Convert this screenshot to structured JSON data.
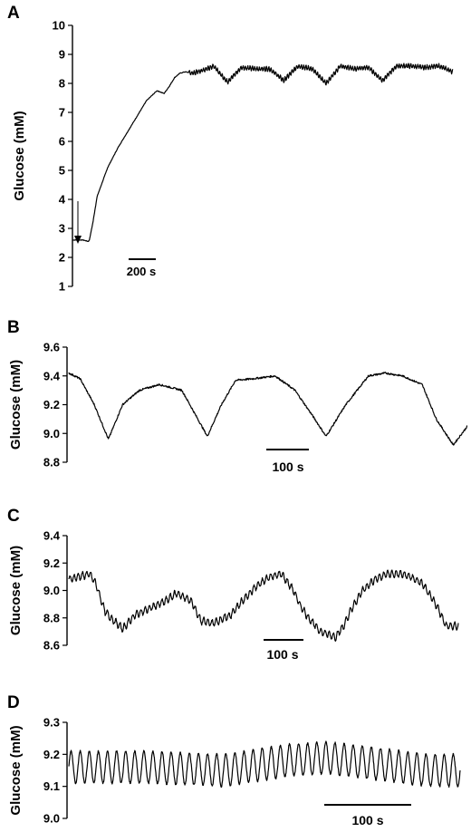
{
  "chart_data": [
    {
      "type": "line",
      "panel_label": "A",
      "ylabel": "Glucose (mM)",
      "ylim": [
        1,
        10
      ],
      "yticks": [
        "1",
        "2",
        "3",
        "4",
        "5",
        "6",
        "7",
        "8",
        "9",
        "10"
      ],
      "scale_bar_label": "200 s",
      "annotation": "arrow",
      "series": [
        {
          "x": [
            0,
            30,
            45,
            48,
            58,
            70,
            100,
            130,
            170,
            210,
            240,
            260,
            275,
            290,
            305,
            320,
            340,
            370,
            400,
            440,
            480,
            520,
            560,
            600,
            640,
            680,
            720,
            760,
            800,
            840,
            880,
            920,
            960,
            1000,
            1040,
            1080
          ],
          "y": [
            2.6,
            2.6,
            2.55,
            2.6,
            3.2,
            4.1,
            5.1,
            5.8,
            6.6,
            7.4,
            7.75,
            7.65,
            7.9,
            8.2,
            8.35,
            8.4,
            8.35,
            8.45,
            8.6,
            8.05,
            8.55,
            8.5,
            8.5,
            8.1,
            8.6,
            8.5,
            8.0,
            8.6,
            8.5,
            8.55,
            8.1,
            8.6,
            8.6,
            8.55,
            8.6,
            8.4
          ]
        }
      ]
    },
    {
      "type": "line",
      "panel_label": "B",
      "ylabel": "Glucose (mM)",
      "ylim": [
        8.8,
        9.6
      ],
      "yticks": [
        "8.8",
        "9.0",
        "9.2",
        "9.4",
        "9.6"
      ],
      "scale_bar_label": "100 s",
      "series": [
        {
          "x": [
            0,
            20,
            45,
            70,
            95,
            125,
            160,
            200,
            245,
            270,
            295,
            325,
            365,
            400,
            430,
            455,
            490,
            530,
            560,
            590,
            625,
            650,
            680,
            705
          ],
          "y": [
            9.42,
            9.38,
            9.2,
            8.96,
            9.2,
            9.3,
            9.34,
            9.3,
            8.98,
            9.2,
            9.37,
            9.38,
            9.4,
            9.3,
            9.13,
            8.98,
            9.2,
            9.4,
            9.42,
            9.4,
            9.34,
            9.1,
            8.92,
            9.05
          ]
        }
      ]
    },
    {
      "type": "line",
      "panel_label": "C",
      "ylabel": "Glucose (mM)",
      "ylim": [
        8.6,
        9.4
      ],
      "yticks": [
        "8.6",
        "8.8",
        "9.0",
        "9.2",
        "9.4"
      ],
      "scale_bar_label": "100 s",
      "series": [
        {
          "x": [
            0,
            15,
            35,
            45,
            60,
            70,
            90,
            110,
            140,
            160,
            180,
            205,
            220,
            240,
            250,
            270,
            285,
            310,
            335,
            355,
            375,
            385,
            400,
            420,
            445,
            460,
            470,
            490,
            510,
            530,
            555,
            570,
            590,
            615,
            630,
            650
          ],
          "y": [
            9.08,
            9.1,
            9.12,
            9.05,
            8.85,
            8.8,
            8.72,
            8.82,
            8.88,
            8.92,
            8.98,
            8.92,
            8.78,
            8.76,
            8.78,
            8.82,
            8.9,
            9.02,
            9.1,
            9.12,
            9.0,
            8.9,
            8.8,
            8.7,
            8.66,
            8.75,
            8.85,
            9.0,
            9.08,
            9.12,
            9.12,
            9.1,
            9.05,
            8.88,
            8.74,
            8.74
          ]
        }
      ]
    },
    {
      "type": "line",
      "panel_label": "D",
      "ylabel": "Glucose (mM)",
      "ylim": [
        9.0,
        9.3
      ],
      "yticks": [
        "9.0",
        "9.1",
        "9.2",
        "9.3"
      ],
      "scale_bar_label": "100 s",
      "oscillation": {
        "cycles": 43,
        "baseline": [
          [
            0,
            9.16
          ],
          [
            150,
            9.16
          ],
          [
            300,
            9.15
          ],
          [
            420,
            9.18
          ],
          [
            500,
            9.19
          ],
          [
            600,
            9.17
          ],
          [
            700,
            9.15
          ],
          [
            760,
            9.15
          ]
        ],
        "amplitude": [
          [
            0,
            0.05
          ],
          [
            760,
            0.05
          ]
        ]
      },
      "series": [
        {
          "x": [
            0,
            760
          ],
          "y": [
            9.16,
            9.15
          ]
        }
      ]
    }
  ]
}
